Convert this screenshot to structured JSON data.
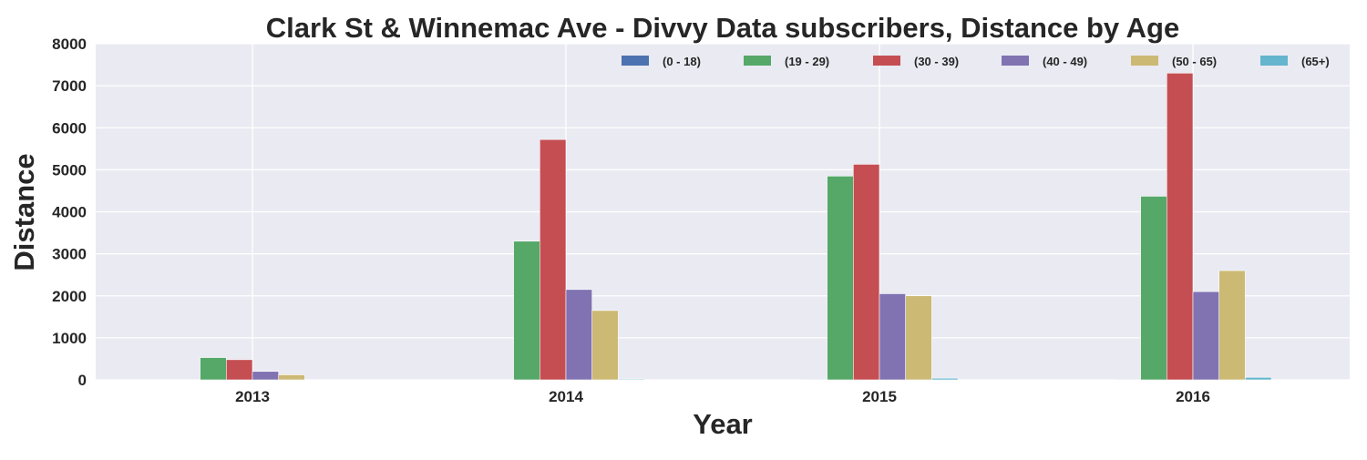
{
  "chart_data": {
    "type": "bar",
    "title": "Clark St & Winnemac Ave - Divvy Data subscribers, Distance by Age",
    "xlabel": "Year",
    "ylabel": "Distance",
    "categories": [
      "2013",
      "2014",
      "2015",
      "2016"
    ],
    "ylim": [
      0,
      8000
    ],
    "yticks": [
      "0",
      "1000",
      "2000",
      "3000",
      "4000",
      "5000",
      "6000",
      "7000",
      "8000"
    ],
    "grid": true,
    "legend_position": "top-right",
    "series": [
      {
        "name": "(0 - 18)",
        "color": "#4c72b0",
        "values": [
          0,
          0,
          15,
          15
        ]
      },
      {
        "name": "(19 - 29)",
        "color": "#55a868",
        "values": [
          530,
          3300,
          4850,
          4370
        ]
      },
      {
        "name": "(30 - 39)",
        "color": "#c44e52",
        "values": [
          480,
          5720,
          5130,
          7300
        ]
      },
      {
        "name": "(40 - 49)",
        "color": "#8172b2",
        "values": [
          200,
          2150,
          2050,
          2100
        ]
      },
      {
        "name": "(50 - 65)",
        "color": "#ccb974",
        "values": [
          120,
          1650,
          2000,
          2600
        ]
      },
      {
        "name": "(65+)",
        "color": "#64b5cd",
        "values": [
          0,
          20,
          40,
          60
        ]
      }
    ]
  }
}
